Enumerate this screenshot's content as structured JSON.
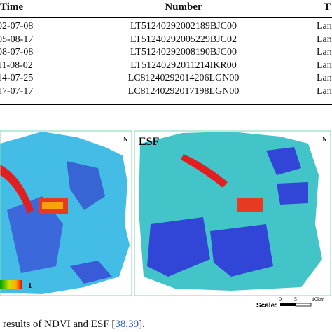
{
  "table": {
    "header": [
      "Time",
      "Number",
      "T"
    ],
    "rows": [
      [
        "02-07-08",
        "LT51240292002189BJC00",
        "Lan"
      ],
      [
        "05-08-17",
        "LT51240292005229BJC02",
        "Lan"
      ],
      [
        "08-07-08",
        "LT51240292008190BJC00",
        "Lan"
      ],
      [
        "11-08-02",
        "LT51240292011214IKR00",
        "Lan"
      ],
      [
        "14-07-25",
        "LC81240292014206LGN00",
        "Lan"
      ],
      [
        "17-07-17",
        "LC81240292017198LGN00",
        "Lan"
      ]
    ]
  },
  "figure": {
    "right_label": "ESF",
    "north": "N",
    "colorbar_max": "1",
    "scale": {
      "label": "Scale:",
      "ticks": [
        "0",
        "5",
        "10km"
      ]
    },
    "caption": {
      "text": "results of NDVI and ESF [",
      "refs": "38,39",
      "end": "]."
    }
  }
}
